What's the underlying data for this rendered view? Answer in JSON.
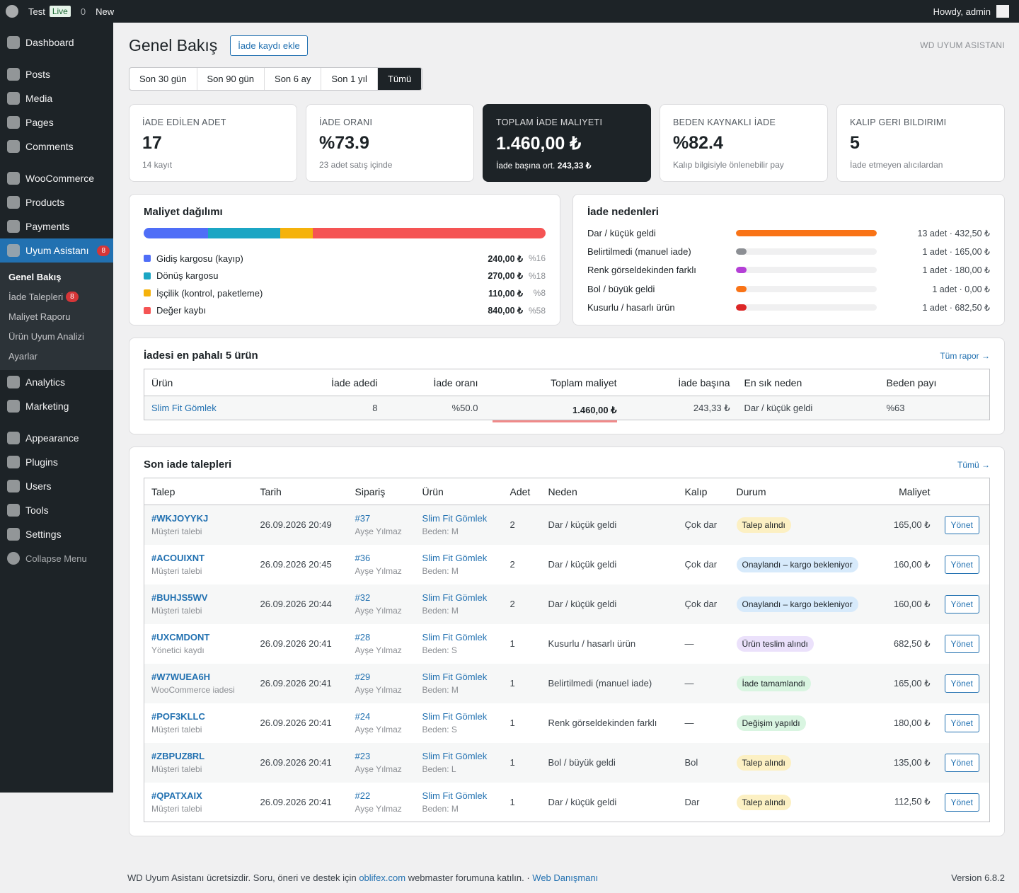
{
  "admin_bar": {
    "site": "Test",
    "live": "Live",
    "comments": "0",
    "new": "New",
    "howdy": "Howdy, admin"
  },
  "sidebar": {
    "menu": [
      {
        "label": "Dashboard"
      },
      {
        "label": "Posts"
      },
      {
        "label": "Media"
      },
      {
        "label": "Pages"
      },
      {
        "label": "Comments"
      },
      {
        "label": "WooCommerce"
      },
      {
        "label": "Products"
      },
      {
        "label": "Payments"
      },
      {
        "label": "Uyum Asistanı",
        "badge": "8"
      },
      {
        "label": "Analytics"
      },
      {
        "label": "Marketing"
      },
      {
        "label": "Appearance"
      },
      {
        "label": "Plugins"
      },
      {
        "label": "Users"
      },
      {
        "label": "Tools"
      },
      {
        "label": "Settings"
      }
    ],
    "submenu": [
      {
        "label": "Genel Bakış"
      },
      {
        "label": "İade Talepleri",
        "badge": "8"
      },
      {
        "label": "Maliyet Raporu"
      },
      {
        "label": "Ürün Uyum Analizi"
      },
      {
        "label": "Ayarlar"
      }
    ],
    "collapse": "Collapse Menu"
  },
  "header": {
    "title": "Genel Bakış",
    "add_button": "İade kaydı ekle",
    "brand": "WD UYUM ASISTANI"
  },
  "filters": [
    "Son 30 gün",
    "Son 90 gün",
    "Son 6 ay",
    "Son 1 yıl",
    "Tümü"
  ],
  "stats": [
    {
      "label": "İADE EDİLEN ADET",
      "value": "17",
      "note": "14 kayıt"
    },
    {
      "label": "İADE ORANI",
      "value": "%73.9",
      "note": "23 adet satış içinde"
    },
    {
      "label": "TOPLAM İADE MALIYETI",
      "value": "1.460,00 ₺",
      "note": "İade başına ort.",
      "note_strong": "243,33 ₺"
    },
    {
      "label": "BEDEN KAYNAKLI İADE",
      "value": "%82.4",
      "note": "Kalıp bilgisiyle önlenebilir pay"
    },
    {
      "label": "KALIP GERI BILDIRIMI",
      "value": "5",
      "note": "İade etmeyen alıcılardan"
    }
  ],
  "cost_distribution": {
    "title": "Maliyet dağılımı",
    "segments": [
      {
        "name": "Gidiş kargosu (kayıp)",
        "color": "#4f6ef7",
        "amount": "240,00 ₺",
        "share": {
          "value": 16,
          "label": "%16"
        }
      },
      {
        "name": "Dönüş kargosu",
        "color": "#1ba6c4",
        "amount": "270,00 ₺",
        "share": {
          "value": 18,
          "label": "%18"
        }
      },
      {
        "name": "İşçilik (kontrol, paketleme)",
        "color": "#f5b20b",
        "amount": "110,00 ₺",
        "share": {
          "value": 8,
          "label": "%8"
        }
      },
      {
        "name": "Değer kaybı",
        "color": "#f55454",
        "amount": "840,00 ₺",
        "share": {
          "value": 58,
          "label": "%58"
        }
      }
    ]
  },
  "return_reasons": {
    "title": "İade nedenleri",
    "items": [
      {
        "name": "Dar / küçük geldi",
        "color": "#f97316",
        "count": 13,
        "label": "13 adet · 432,50 ₺"
      },
      {
        "name": "Belirtilmedi (manuel iade)",
        "color": "#8c8f94",
        "count": 1,
        "label": "1 adet · 165,00 ₺"
      },
      {
        "name": "Renk görseldekinden farklı",
        "color": "#b43fd6",
        "count": 1,
        "label": "1 adet · 180,00 ₺"
      },
      {
        "name": "Bol / büyük geldi",
        "color": "#f97316",
        "count": 1,
        "label": "1 adet · 0,00 ₺"
      },
      {
        "name": "Kusurlu / hasarlı ürün",
        "color": "#dc2626",
        "count": 1,
        "label": "1 adet · 682,50 ₺"
      }
    ]
  },
  "top_products": {
    "title": "İadesi en pahalı 5 ürün",
    "link": "Tüm rapor →",
    "columns": [
      "Ürün",
      "İade adedi",
      "İade oranı",
      "Toplam maliyet",
      "İade başına",
      "En sık neden",
      "Beden payı"
    ],
    "rows": [
      [
        "Slim Fit Gömlek",
        "8",
        "%50.0",
        "1.460,00 ₺",
        "243,33 ₺",
        "Dar / küçük geldi",
        "%63"
      ]
    ]
  },
  "recent": {
    "title": "Son iade talepleri",
    "link": "Tümü →",
    "columns": [
      "Talep",
      "Tarih",
      "Sipariş",
      "Ürün",
      "Adet",
      "Neden",
      "Kalıp",
      "Durum",
      "Maliyet"
    ],
    "rows": [
      {
        "id": "#WKJOYYKJ",
        "source": "Müşteri talebi",
        "date": "26.09.2026 20:49",
        "order": "#37",
        "customer": "Ayşe Yılmaz",
        "product": "Slim Fit Gömlek",
        "size": "Beden: M",
        "qty": "2",
        "reason": "Dar / küçük geldi",
        "fit": "Çok dar",
        "status": "Talep alındı",
        "status_color": "#fcf0c3",
        "cost": "165,00 ₺",
        "action": "Yönet"
      },
      {
        "id": "#ACOUIXNT",
        "source": "Müşteri talebi",
        "date": "26.09.2026 20:45",
        "order": "#36",
        "customer": "Ayşe Yılmaz",
        "product": "Slim Fit Gömlek",
        "size": "Beden: M",
        "qty": "2",
        "reason": "Dar / küçük geldi",
        "fit": "Çok dar",
        "status": "Onaylandı – kargo bekleniyor",
        "status_color": "#d7eafb",
        "cost": "160,00 ₺",
        "action": "Yönet"
      },
      {
        "id": "#BUHJS5WV",
        "source": "Müşteri talebi",
        "date": "26.09.2026 20:44",
        "order": "#32",
        "customer": "Ayşe Yılmaz",
        "product": "Slim Fit Gömlek",
        "size": "Beden: M",
        "qty": "2",
        "reason": "Dar / küçük geldi",
        "fit": "Çok dar",
        "status": "Onaylandı – kargo bekleniyor",
        "status_color": "#d7eafb",
        "cost": "160,00 ₺",
        "action": "Yönet"
      },
      {
        "id": "#UXCMDONT",
        "source": "Yönetici kaydı",
        "date": "26.09.2026 20:41",
        "order": "#28",
        "customer": "Ayşe Yılmaz",
        "product": "Slim Fit Gömlek",
        "size": "Beden: S",
        "qty": "1",
        "reason": "Kusurlu / hasarlı ürün",
        "fit": "—",
        "status": "Ürün teslim alındı",
        "status_color": "#ebe1fb",
        "cost": "682,50 ₺",
        "action": "Yönet"
      },
      {
        "id": "#W7WUEA6H",
        "source": "WooCommerce iadesi",
        "date": "26.09.2026 20:41",
        "order": "#29",
        "customer": "Ayşe Yılmaz",
        "product": "Slim Fit Gömlek",
        "size": "Beden: M",
        "qty": "1",
        "reason": "Belirtilmedi (manuel iade)",
        "fit": "—",
        "status": "İade tamamlandı",
        "status_color": "#d9f5e1",
        "cost": "165,00 ₺",
        "action": "Yönet"
      },
      {
        "id": "#POF3KLLC",
        "source": "Müşteri talebi",
        "date": "26.09.2026 20:41",
        "order": "#24",
        "customer": "Ayşe Yılmaz",
        "product": "Slim Fit Gömlek",
        "size": "Beden: S",
        "qty": "1",
        "reason": "Renk görseldekinden farklı",
        "fit": "—",
        "status": "Değişim yapıldı",
        "status_color": "#d9f5e1",
        "cost": "180,00 ₺",
        "action": "Yönet"
      },
      {
        "id": "#ZBPUZ8RL",
        "source": "Müşteri talebi",
        "date": "26.09.2026 20:41",
        "order": "#23",
        "customer": "Ayşe Yılmaz",
        "product": "Slim Fit Gömlek",
        "size": "Beden: L",
        "qty": "1",
        "reason": "Bol / büyük geldi",
        "fit": "Bol",
        "status": "Talep alındı",
        "status_color": "#fcf0c3",
        "cost": "135,00 ₺",
        "action": "Yönet"
      },
      {
        "id": "#QPATXAIX",
        "source": "Müşteri talebi",
        "date": "26.09.2026 20:41",
        "order": "#22",
        "customer": "Ayşe Yılmaz",
        "product": "Slim Fit Gömlek",
        "size": "Beden: M",
        "qty": "1",
        "reason": "Dar / küçük geldi",
        "fit": "Dar",
        "status": "Talep alındı",
        "status_color": "#fcf0c3",
        "cost": "112,50 ₺",
        "action": "Yönet"
      }
    ]
  },
  "footer": {
    "text": "WD Uyum Asistanı ücretsizdir. Soru, öneri ve destek için",
    "link1": "oblifex.com",
    "middle": "webmaster forumuna katılın. ·",
    "link2": "Web Danışmanı",
    "version": "Version 6.8.2"
  }
}
